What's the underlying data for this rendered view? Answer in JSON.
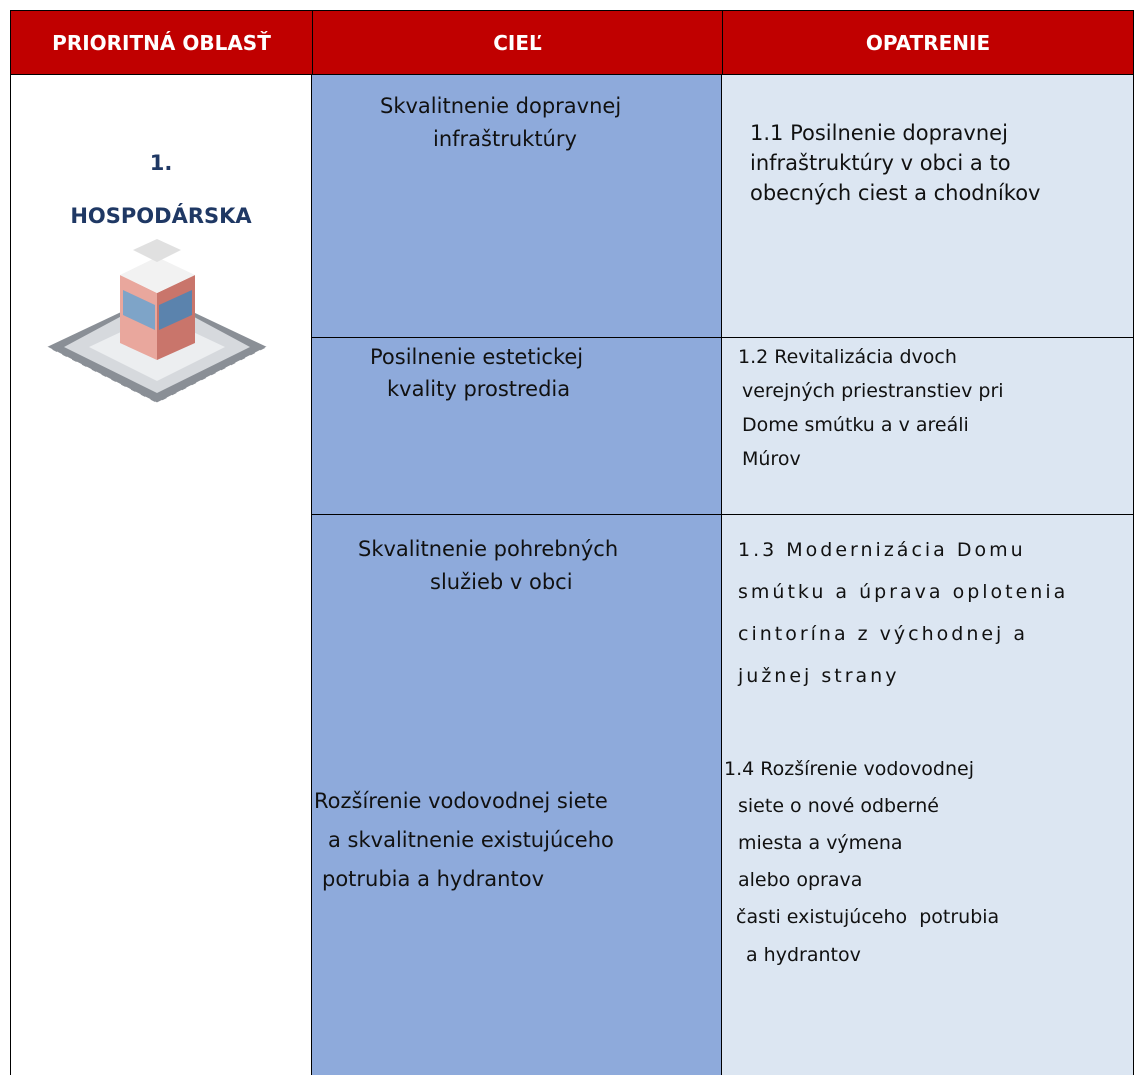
{
  "table": {
    "header": [
      "PRIORITNÁ OBLASŤ",
      "CIEĽ",
      "OPATRENIE"
    ],
    "area": {
      "number": "1.",
      "name": "HOSPODÁRSKA"
    },
    "rows": [
      {
        "goals": [
          [
            "Skvalitnenie dopravnej",
            "infraštruktúry"
          ]
        ],
        "measures": [
          [
            "1.1 Posilnenie dopravnej",
            "infraštruktúry v obci a to",
            "obecných ciest a chodníkov"
          ]
        ]
      },
      {
        "goals": [
          [
            "Posilnenie estetickej",
            "kvality prostredia"
          ]
        ],
        "measures": [
          [
            "1.2 Revitalizácia dvoch",
            "verejných priestranstiev pri",
            "Dome smútku a v areáli",
            "Múrov"
          ]
        ]
      },
      {
        "goals": [
          [
            "Skvalitnenie pohrebných",
            "služieb v obci"
          ],
          [
            "Rozšírenie vodovodnej siete",
            "a skvalitnenie existujúceho",
            "potrubia a hydrantov"
          ]
        ],
        "measures": [
          [
            "1.3 Modernizácia Domu",
            "smútku a úprava oplotenia",
            "cintorína z východnej a",
            "južnej strany"
          ],
          [
            "1.4 Rozšírenie vodovodnej",
            "siete o nové odberné",
            "miesta a výmena",
            "alebo oprava",
            "časti existujúceho  potrubia",
            "a hydrantov"
          ]
        ]
      }
    ]
  }
}
